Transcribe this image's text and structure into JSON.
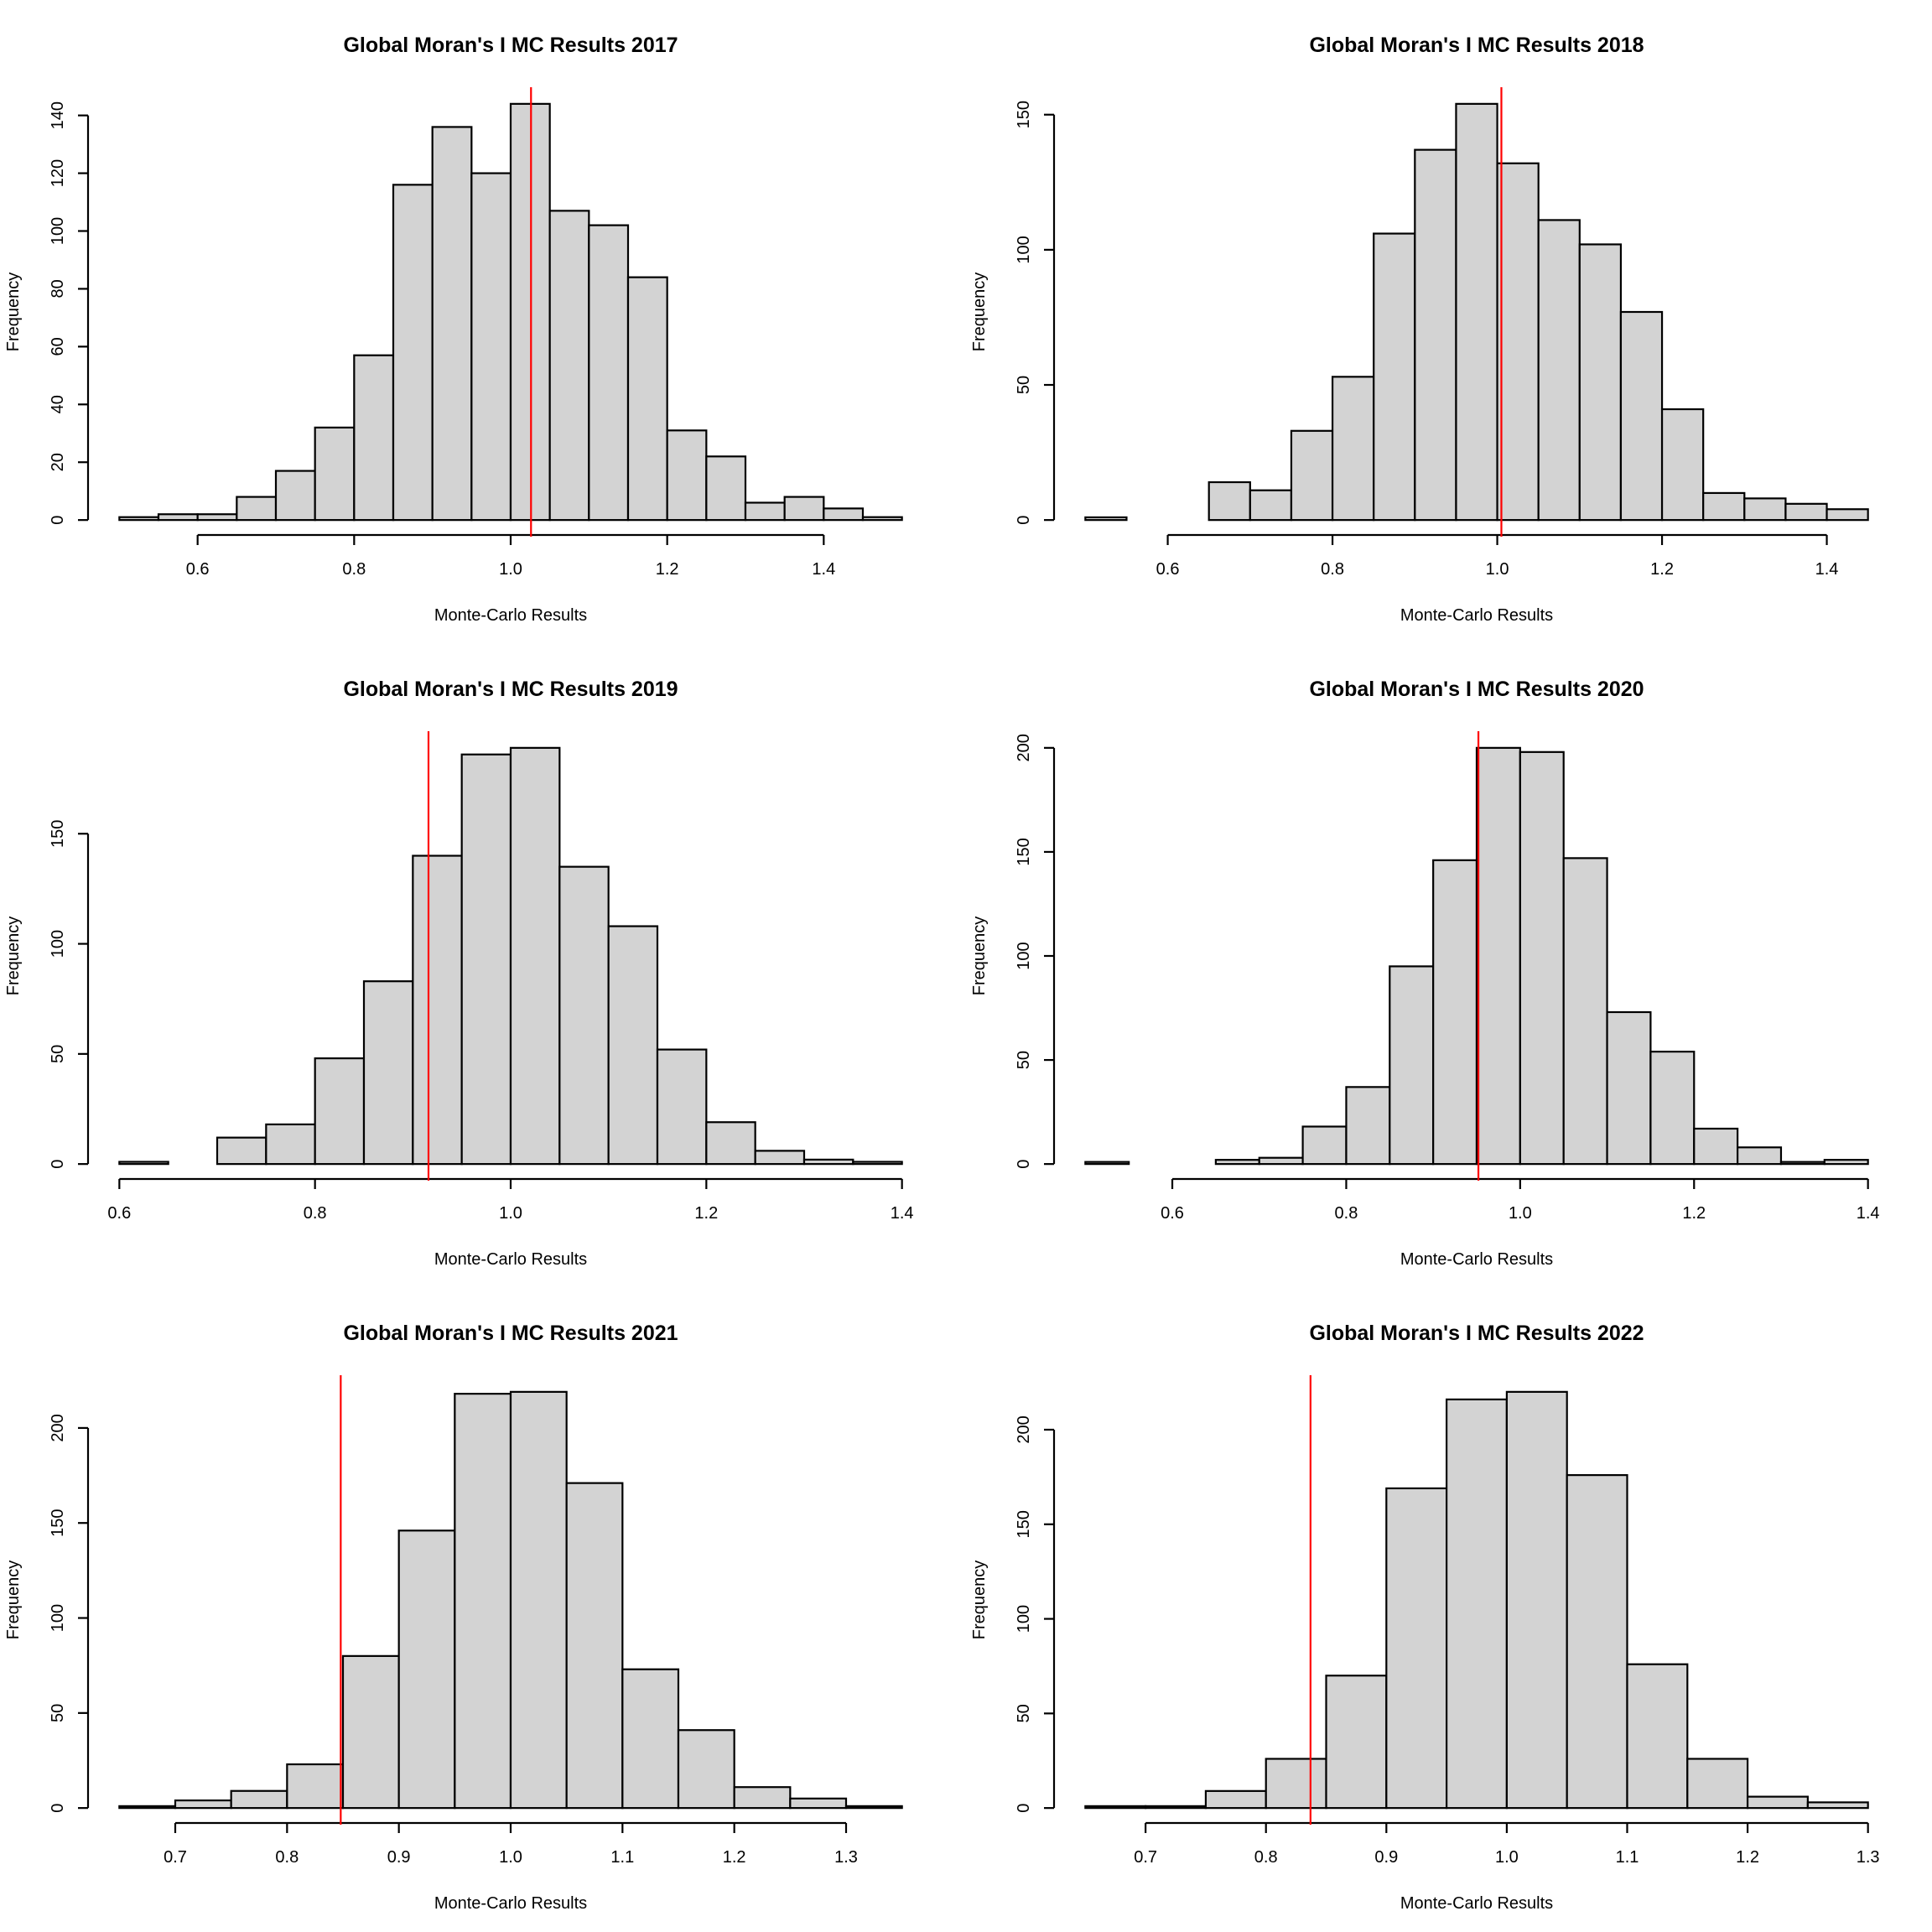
{
  "figure": {
    "layout": "3 rows x 2 columns of histograms"
  },
  "chart_data": [
    {
      "type": "bar",
      "subtype": "histogram",
      "title": "Global Moran's I MC Results 2017",
      "xlabel": "Monte-Carlo Results",
      "ylabel": "Frequency",
      "bin_width": 0.05,
      "break_start": 0.5,
      "counts": [
        1,
        2,
        2,
        8,
        17,
        32,
        57,
        116,
        136,
        120,
        144,
        107,
        102,
        84,
        31,
        22,
        6,
        8,
        4,
        1
      ],
      "x_ticks": [
        "0.6",
        "0.8",
        "1.0",
        "1.2",
        "1.4"
      ],
      "x_tick_values": [
        0.6,
        0.8,
        1.0,
        1.2,
        1.4
      ],
      "y_ticks": [
        "0",
        "20",
        "40",
        "60",
        "80",
        "100",
        "120",
        "140"
      ],
      "y_tick_values": [
        0,
        20,
        40,
        60,
        80,
        100,
        120,
        140
      ],
      "xlim": [
        0.5,
        1.5
      ],
      "observed_value": 1.026,
      "observed_line_color": "#ff0000",
      "bar_color": "#d3d3d3"
    },
    {
      "type": "bar",
      "subtype": "histogram",
      "title": "Global Moran's I MC Results 2018",
      "xlabel": "Monte-Carlo Results",
      "ylabel": "Frequency",
      "bin_width": 0.05,
      "break_start": 0.5,
      "counts": [
        1,
        0,
        0,
        14,
        11,
        33,
        53,
        106,
        137,
        154,
        132,
        111,
        102,
        77,
        41,
        10,
        8,
        6,
        4
      ],
      "x_ticks": [
        "0.6",
        "0.8",
        "1.0",
        "1.2",
        "1.4"
      ],
      "x_tick_values": [
        0.6,
        0.8,
        1.0,
        1.2,
        1.4
      ],
      "y_ticks": [
        "0",
        "50",
        "100",
        "150"
      ],
      "y_tick_values": [
        0,
        50,
        100,
        150
      ],
      "xlim": [
        0.5,
        1.45
      ],
      "observed_value": 1.005,
      "observed_line_color": "#ff0000",
      "bar_color": "#d3d3d3"
    },
    {
      "type": "bar",
      "subtype": "histogram",
      "title": "Global Moran's I MC Results 2019",
      "xlabel": "Monte-Carlo Results",
      "ylabel": "Frequency",
      "bin_width": 0.05,
      "break_start": 0.6,
      "counts": [
        1,
        0,
        12,
        18,
        48,
        83,
        140,
        186,
        189,
        135,
        108,
        52,
        19,
        6,
        2,
        1
      ],
      "x_ticks": [
        "0.6",
        "0.8",
        "1.0",
        "1.2",
        "1.4"
      ],
      "x_tick_values": [
        0.6,
        0.8,
        1.0,
        1.2,
        1.4
      ],
      "y_ticks": [
        "0",
        "50",
        "100",
        "150"
      ],
      "y_tick_values": [
        0,
        50,
        100,
        150
      ],
      "xlim": [
        0.6,
        1.4
      ],
      "observed_value": 0.916,
      "observed_line_color": "#ff0000",
      "bar_color": "#d3d3d3"
    },
    {
      "type": "bar",
      "subtype": "histogram",
      "title": "Global Moran's I MC Results 2020",
      "xlabel": "Monte-Carlo Results",
      "ylabel": "Frequency",
      "bin_width": 0.05,
      "break_start": 0.5,
      "counts": [
        1,
        0,
        0,
        2,
        3,
        18,
        37,
        95,
        146,
        200,
        198,
        147,
        73,
        54,
        17,
        8,
        1,
        2
      ],
      "x_ticks": [
        "0.6",
        "0.8",
        "1.0",
        "1.2",
        "1.4"
      ],
      "x_tick_values": [
        0.6,
        0.8,
        1.0,
        1.2,
        1.4
      ],
      "y_ticks": [
        "0",
        "50",
        "100",
        "150",
        "200"
      ],
      "y_tick_values": [
        0,
        50,
        100,
        150,
        200
      ],
      "xlim": [
        0.5,
        1.4
      ],
      "observed_value": 0.952,
      "observed_line_color": "#ff0000",
      "bar_color": "#d3d3d3"
    },
    {
      "type": "bar",
      "subtype": "histogram",
      "title": "Global Moran's I MC Results 2021",
      "xlabel": "Monte-Carlo Results",
      "ylabel": "Frequency",
      "bin_width": 0.05,
      "break_start": 0.65,
      "counts": [
        1,
        4,
        9,
        23,
        80,
        146,
        218,
        219,
        171,
        73,
        41,
        11,
        5,
        1
      ],
      "x_ticks": [
        "0.7",
        "0.8",
        "0.9",
        "1.0",
        "1.1",
        "1.2",
        "1.3"
      ],
      "x_tick_values": [
        0.7,
        0.8,
        0.9,
        1.0,
        1.1,
        1.2,
        1.3
      ],
      "y_ticks": [
        "0",
        "50",
        "100",
        "150",
        "200"
      ],
      "y_tick_values": [
        0,
        50,
        100,
        150,
        200
      ],
      "xlim": [
        0.65,
        1.35
      ],
      "observed_value": 0.848,
      "observed_line_color": "#ff0000",
      "bar_color": "#d3d3d3"
    },
    {
      "type": "bar",
      "subtype": "histogram",
      "title": "Global Moran's I MC Results 2022",
      "xlabel": "Monte-Carlo Results",
      "ylabel": "Frequency",
      "bin_width": 0.05,
      "break_start": 0.65,
      "counts": [
        1,
        1,
        9,
        26,
        70,
        169,
        216,
        220,
        176,
        76,
        26,
        6,
        3
      ],
      "x_ticks": [
        "0.7",
        "0.8",
        "0.9",
        "1.0",
        "1.1",
        "1.2",
        "1.3"
      ],
      "x_tick_values": [
        0.7,
        0.8,
        0.9,
        1.0,
        1.1,
        1.2,
        1.3
      ],
      "y_ticks": [
        "0",
        "50",
        "100",
        "150",
        "200"
      ],
      "y_tick_values": [
        0,
        50,
        100,
        150,
        200
      ],
      "xlim": [
        0.65,
        1.3
      ],
      "observed_value": 0.837,
      "observed_line_color": "#ff0000",
      "bar_color": "#d3d3d3"
    }
  ]
}
